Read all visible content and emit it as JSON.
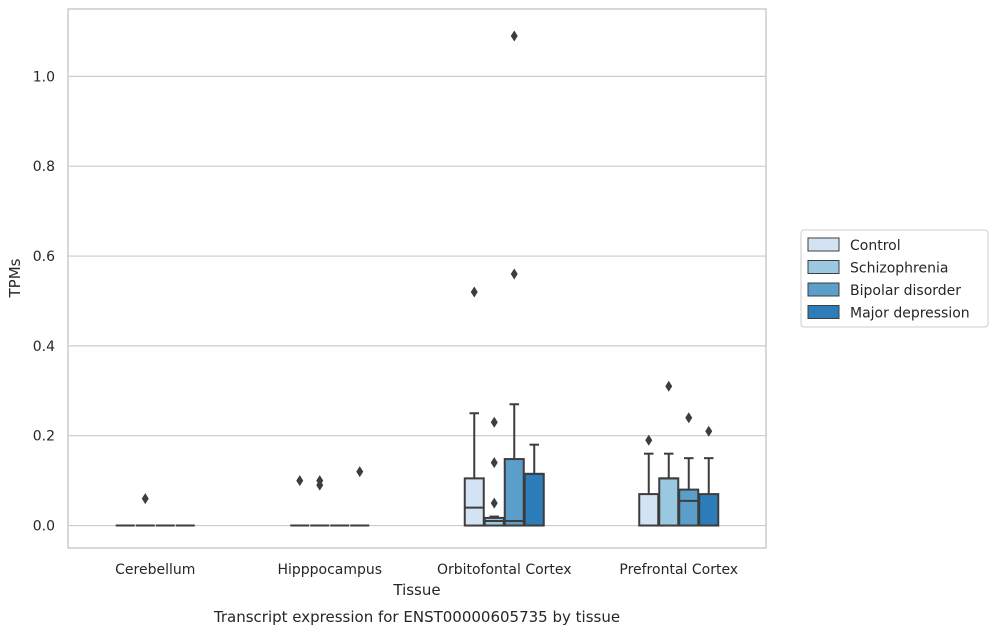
{
  "chart_data": {
    "type": "box",
    "xlabel": "Tissue",
    "ylabel": "TPMs",
    "caption": "Transcript expression for ENST00000605735 by tissue",
    "ylim": [
      -0.05,
      1.15
    ],
    "yticks": [
      0.0,
      0.2,
      0.4,
      0.6,
      0.8,
      1.0
    ],
    "ytick_labels": [
      "0.0",
      "0.2",
      "0.4",
      "0.6",
      "0.8",
      "1.0"
    ],
    "grid": "horizontal",
    "legend_position": "right",
    "categories": [
      "Cerebellum",
      "Hipppocampus",
      "Orbitofontal Cortex",
      "Prefrontal Cortex"
    ],
    "series": [
      {
        "name": "Control",
        "color": "#d3e3f3",
        "boxes": [
          {
            "q1": 0,
            "median": 0,
            "q3": 0,
            "whislo": 0,
            "whishi": 0,
            "fliers": []
          },
          {
            "q1": 0,
            "median": 0,
            "q3": 0,
            "whislo": 0,
            "whishi": 0,
            "fliers": [
              0.1
            ]
          },
          {
            "q1": 0,
            "median": 0.04,
            "q3": 0.105,
            "whislo": 0,
            "whishi": 0.25,
            "fliers": [
              0.52
            ]
          },
          {
            "q1": 0,
            "median": 0,
            "q3": 0.07,
            "whislo": 0,
            "whishi": 0.16,
            "fliers": [
              0.19
            ]
          }
        ]
      },
      {
        "name": "Schizophrenia",
        "color": "#9ac8e0",
        "boxes": [
          {
            "q1": 0,
            "median": 0,
            "q3": 0,
            "whislo": 0,
            "whishi": 0,
            "fliers": [
              0.06
            ]
          },
          {
            "q1": 0,
            "median": 0,
            "q3": 0,
            "whislo": 0,
            "whishi": 0,
            "fliers": [
              0.09,
              0.1
            ]
          },
          {
            "q1": 0,
            "median": 0.01,
            "q3": 0.017,
            "whislo": 0,
            "whishi": 0.02,
            "fliers": [
              0.05,
              0.14,
              0.23
            ]
          },
          {
            "q1": 0,
            "median": 0.105,
            "q3": 0.105,
            "whislo": 0,
            "whishi": 0.16,
            "fliers": [
              0.31
            ]
          }
        ]
      },
      {
        "name": "Bipolar disorder",
        "color": "#5b9ec9",
        "boxes": [
          {
            "q1": 0,
            "median": 0,
            "q3": 0,
            "whislo": 0,
            "whishi": 0,
            "fliers": []
          },
          {
            "q1": 0,
            "median": 0,
            "q3": 0,
            "whislo": 0,
            "whishi": 0,
            "fliers": []
          },
          {
            "q1": 0,
            "median": 0.01,
            "q3": 0.148,
            "whislo": 0,
            "whishi": 0.27,
            "fliers": [
              0.56,
              1.09
            ]
          },
          {
            "q1": 0,
            "median": 0.055,
            "q3": 0.08,
            "whislo": 0,
            "whishi": 0.15,
            "fliers": [
              0.24
            ]
          }
        ]
      },
      {
        "name": "Major depression",
        "color": "#2d7dbb",
        "boxes": [
          {
            "q1": 0,
            "median": 0,
            "q3": 0,
            "whislo": 0,
            "whishi": 0,
            "fliers": []
          },
          {
            "q1": 0,
            "median": 0,
            "q3": 0,
            "whislo": 0,
            "whishi": 0,
            "fliers": [
              0.12
            ]
          },
          {
            "q1": 0,
            "median": 0.115,
            "q3": 0.115,
            "whislo": 0,
            "whishi": 0.18,
            "fliers": []
          },
          {
            "q1": 0,
            "median": 0,
            "q3": 0.07,
            "whislo": 0,
            "whishi": 0.15,
            "fliers": [
              0.21
            ]
          }
        ]
      }
    ]
  }
}
